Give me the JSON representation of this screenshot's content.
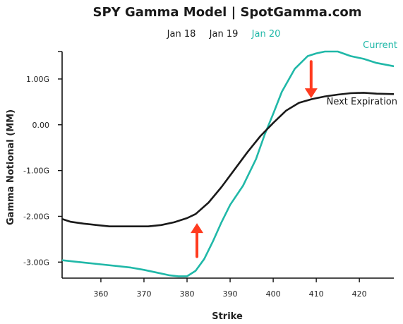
{
  "chart_data": {
    "type": "line",
    "title": "SPY Gamma Model | SpotGamma.com",
    "legend": [
      {
        "label": "Jan 18",
        "color": "#1a1a1a"
      },
      {
        "label": "Jan 19",
        "color": "#1a1a1a"
      },
      {
        "label": "Jan 20",
        "color": "#20b8a8"
      }
    ],
    "xlabel": "Strike",
    "ylabel": "Gamma Notional (MM)",
    "xlim": [
      351,
      428
    ],
    "ylim": [
      -3.35,
      1.6
    ],
    "x_ticks": [
      360,
      370,
      380,
      390,
      400,
      410,
      420
    ],
    "y_ticks": [
      {
        "value": 1.0,
        "label": "1.00G"
      },
      {
        "value": 0.0,
        "label": "0.00"
      },
      {
        "value": -1.0,
        "label": "-1.00G"
      },
      {
        "value": -2.0,
        "label": "-2.00G"
      },
      {
        "value": -3.0,
        "label": "-3.00G"
      }
    ],
    "series": [
      {
        "name": "Current",
        "color": "#20b8a8",
        "x": [
          351,
          355,
          360,
          364,
          367,
          370,
          373,
          376,
          378,
          380,
          382,
          384,
          386,
          388,
          390,
          393,
          396,
          398,
          400,
          402,
          405,
          408,
          410,
          412,
          415,
          418,
          421,
          424,
          428
        ],
        "y": [
          -2.96,
          -3.0,
          -3.05,
          -3.09,
          -3.12,
          -3.17,
          -3.23,
          -3.29,
          -3.31,
          -3.31,
          -3.19,
          -2.93,
          -2.55,
          -2.13,
          -1.75,
          -1.33,
          -0.75,
          -0.22,
          0.24,
          0.72,
          1.22,
          1.5,
          1.56,
          1.6,
          1.6,
          1.5,
          1.44,
          1.35,
          1.28
        ]
      },
      {
        "name": "Next Expiration",
        "color": "#1a1a1a",
        "x": [
          351,
          353,
          356,
          359,
          362,
          365,
          368,
          371,
          374,
          377,
          380,
          382,
          385,
          388,
          391,
          394,
          397,
          400,
          403,
          406,
          409,
          412,
          415,
          418,
          421,
          424,
          428
        ],
        "y": [
          -2.06,
          -2.12,
          -2.16,
          -2.19,
          -2.22,
          -2.22,
          -2.22,
          -2.22,
          -2.19,
          -2.13,
          -2.04,
          -1.95,
          -1.7,
          -1.36,
          -0.98,
          -0.6,
          -0.25,
          0.04,
          0.31,
          0.48,
          0.56,
          0.62,
          0.66,
          0.69,
          0.7,
          0.68,
          0.67
        ]
      }
    ],
    "annotations": [
      {
        "type": "arrow",
        "direction": "down",
        "color": "#ff3b1f",
        "x": 408.8,
        "y_from": 1.38,
        "y_to": 0.58
      },
      {
        "type": "arrow",
        "direction": "up",
        "color": "#ff3b1f",
        "x": 382.3,
        "y_from": -2.88,
        "y_to": -2.15
      }
    ]
  }
}
